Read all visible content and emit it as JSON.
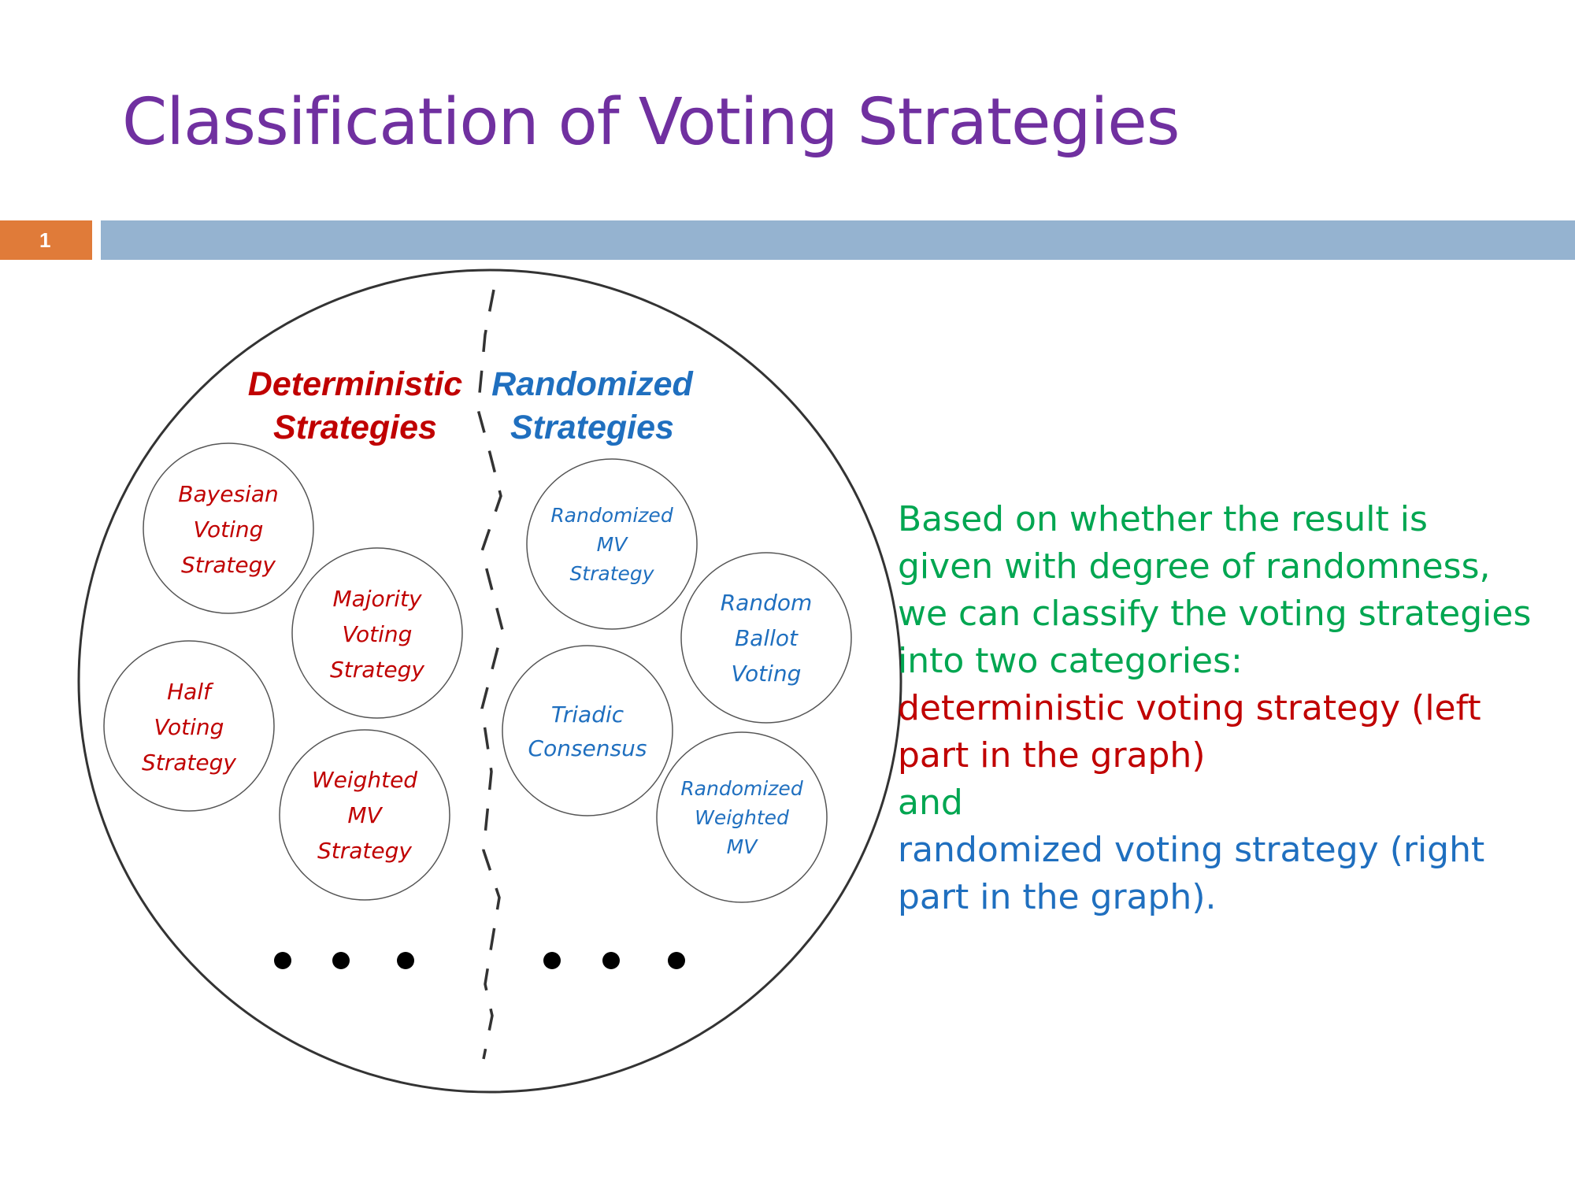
{
  "slide": {
    "title": "Classification of Voting Strategies",
    "slide_number": "1"
  },
  "colors": {
    "title": "#7030a0",
    "deterministic": "#c00000",
    "randomized": "#1f6fbf",
    "green": "#00a651",
    "accent_orange": "#e07b39",
    "accent_blue": "#95b3d0"
  },
  "diagram": {
    "deterministic": {
      "label_line1": "Deterministic",
      "label_line2": "Strategies",
      "items": [
        {
          "lines": [
            "Bayesian",
            "Voting",
            "Strategy"
          ]
        },
        {
          "lines": [
            "Majority",
            "Voting",
            "Strategy"
          ]
        },
        {
          "lines": [
            "Half",
            "Voting",
            "Strategy"
          ]
        },
        {
          "lines": [
            "Weighted",
            "MV",
            "Strategy"
          ]
        }
      ]
    },
    "randomized": {
      "label_line1": "Randomized",
      "label_line2": "Strategies",
      "items": [
        {
          "lines": [
            "Randomized",
            "MV",
            "Strategy"
          ]
        },
        {
          "lines": [
            "Random",
            "Ballot",
            "Voting"
          ]
        },
        {
          "lines": [
            "Triadic",
            "Consensus"
          ]
        },
        {
          "lines": [
            "Randomized",
            "Weighted",
            "MV"
          ]
        }
      ]
    }
  },
  "description": {
    "line1": "Based on whether the result is",
    "line2": "given with degree of randomness,",
    "line3": "we can classify the voting strategies",
    "line4": "into two categories:",
    "line5": "deterministic voting strategy (left",
    "line6": "part in the graph)",
    "line7": "and",
    "line8": "randomized voting strategy (right",
    "line9": "part in the graph)."
  }
}
